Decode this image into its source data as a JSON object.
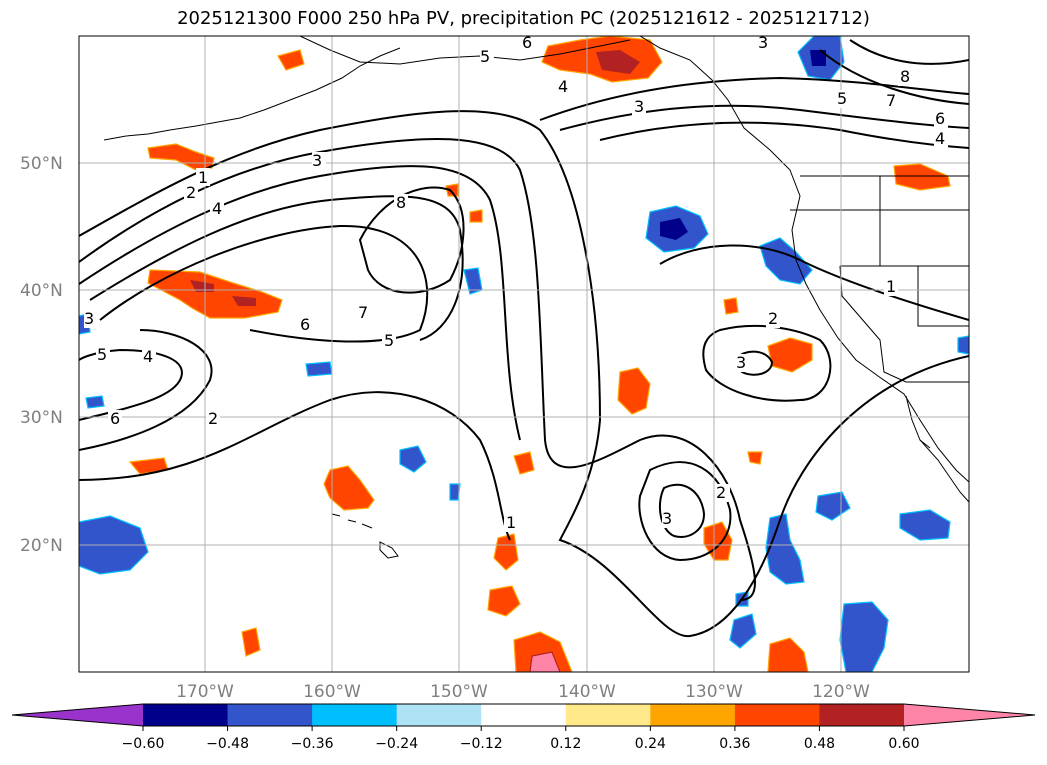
{
  "title": "2025121300 F000 250 hPa PV, precipitation PC (2025121612 - 2025121712)",
  "latitude_labels": [
    "50°N",
    "40°N",
    "30°N",
    "20°N"
  ],
  "longitude_labels": [
    "170°W",
    "160°W",
    "150°W",
    "140°W",
    "130°W",
    "120°W"
  ],
  "contour_labels": [
    "1",
    "2",
    "3",
    "4",
    "5",
    "6",
    "7",
    "8"
  ],
  "colorbar": {
    "ticks": [
      "−0.60",
      "−0.48",
      "−0.36",
      "−0.24",
      "−0.12",
      "0.12",
      "0.24",
      "0.36",
      "0.48",
      "0.60"
    ],
    "colors": [
      "#9933cc",
      "#00008b",
      "#3355cc",
      "#00bfff",
      "#aee2f5",
      "#ffffff",
      "#ffe98a",
      "#ffa500",
      "#ff4500",
      "#b22222",
      "#ff85a8"
    ]
  },
  "colors": {
    "positive_precip": "#ff4500",
    "positive_edge": "#ffa500",
    "negative_precip": "#3355cc",
    "negative_edge": "#00bfff",
    "strong_negative": "#00008b",
    "strong_positive": "#b22222",
    "gridline": "#b0b0b0"
  }
}
